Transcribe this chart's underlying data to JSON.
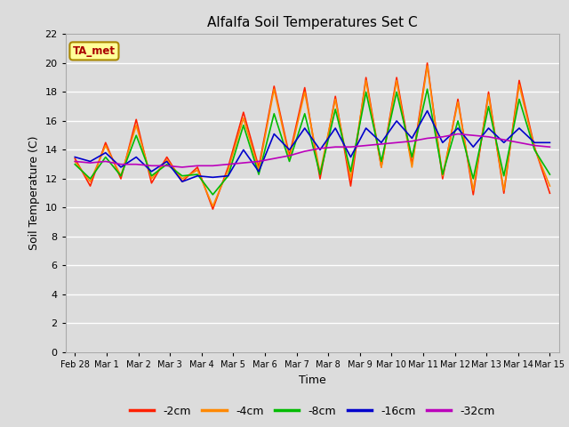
{
  "title": "Alfalfa Soil Temperatures Set C",
  "xlabel": "Time",
  "ylabel": "Soil Temperature (C)",
  "ylim": [
    0,
    22
  ],
  "yticks": [
    0,
    2,
    4,
    6,
    8,
    10,
    12,
    14,
    16,
    18,
    20,
    22
  ],
  "background_color": "#dcdcdc",
  "plot_bg_color": "#dcdcdc",
  "grid_color": "#ffffff",
  "annotation_text": "TA_met",
  "annotation_color": "#aa0000",
  "annotation_bg": "#ffff99",
  "annotation_edge": "#aa8800",
  "series": {
    "-2cm": {
      "color": "#ff2000",
      "lw": 1.2
    },
    "-4cm": {
      "color": "#ff8800",
      "lw": 1.2
    },
    "-8cm": {
      "color": "#00bb00",
      "lw": 1.2
    },
    "-16cm": {
      "color": "#0000cc",
      "lw": 1.2
    },
    "-32cm": {
      "color": "#bb00bb",
      "lw": 1.2
    }
  },
  "legend_order": [
    "-2cm",
    "-4cm",
    "-8cm",
    "-16cm",
    "-32cm"
  ],
  "xtick_labels": [
    "Feb 28",
    "Mar 1",
    "Mar 2",
    "Mar 3",
    "Mar 4",
    "Mar 5",
    "Mar 6",
    "Mar 7",
    "Mar 8",
    "Mar 9",
    "Mar 10",
    "Mar 11",
    "Mar 12",
    "Mar 13",
    "Mar 14",
    "Mar 15"
  ],
  "data_2cm": [
    13.4,
    11.5,
    14.5,
    12.0,
    16.1,
    11.7,
    13.5,
    11.8,
    12.8,
    9.9,
    12.8,
    16.6,
    12.8,
    18.4,
    13.6,
    18.3,
    12.0,
    17.7,
    11.5,
    19.0,
    12.8,
    19.0,
    13.0,
    20.0,
    12.0,
    17.5,
    10.9,
    18.0,
    11.0,
    18.8,
    14.2,
    11.0
  ],
  "data_4cm": [
    13.2,
    11.8,
    14.3,
    12.2,
    15.7,
    12.0,
    13.3,
    12.0,
    12.6,
    10.1,
    12.6,
    16.2,
    12.6,
    18.2,
    13.4,
    18.0,
    12.4,
    17.5,
    12.0,
    18.8,
    12.8,
    18.8,
    12.8,
    19.8,
    12.2,
    17.3,
    11.2,
    17.8,
    11.2,
    18.5,
    14.1,
    11.5
  ],
  "data_8cm": [
    13.0,
    12.0,
    13.5,
    12.2,
    15.0,
    12.2,
    13.0,
    12.2,
    12.3,
    10.9,
    12.2,
    15.7,
    12.3,
    16.5,
    13.2,
    16.5,
    12.3,
    16.8,
    12.5,
    18.0,
    13.2,
    18.0,
    13.5,
    18.2,
    12.3,
    16.0,
    12.0,
    17.0,
    12.2,
    17.5,
    14.0,
    12.3
  ],
  "data_16cm": [
    13.5,
    13.2,
    13.8,
    12.8,
    13.5,
    12.5,
    13.2,
    11.8,
    12.2,
    12.1,
    12.2,
    14.0,
    12.5,
    15.1,
    14.0,
    15.5,
    14.0,
    15.5,
    13.5,
    15.5,
    14.5,
    16.0,
    14.8,
    16.7,
    14.5,
    15.5,
    14.2,
    15.5,
    14.5,
    15.5,
    14.5,
    14.5
  ],
  "data_32cm": [
    13.2,
    13.1,
    13.2,
    13.0,
    13.0,
    12.9,
    12.9,
    12.8,
    12.9,
    12.9,
    13.0,
    13.1,
    13.2,
    13.4,
    13.6,
    13.9,
    14.1,
    14.2,
    14.2,
    14.3,
    14.4,
    14.5,
    14.6,
    14.8,
    14.9,
    15.1,
    15.0,
    14.9,
    14.7,
    14.5,
    14.3,
    14.2
  ]
}
